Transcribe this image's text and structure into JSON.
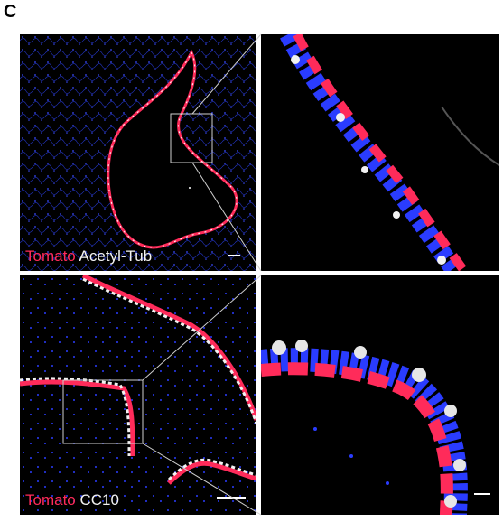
{
  "panel_label": "C",
  "panels": {
    "top_left": {
      "stain_1": "Tomato",
      "stain_2": "Acetyl-Tub"
    },
    "bottom_left": {
      "stain_1": "Tomato",
      "stain_2": "CC10"
    }
  },
  "colors": {
    "tomato": "#ff2b5a",
    "nuclei": "#2a3cff",
    "marker": "#f2f2f2",
    "background": "#000000"
  }
}
